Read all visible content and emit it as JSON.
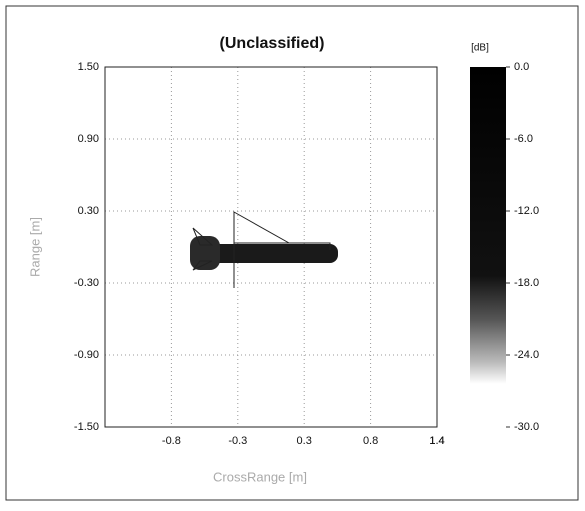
{
  "chart_data": {
    "type": "image",
    "title": "(Unclassified)",
    "x_label": "CrossRange [m]",
    "y_label": "Range [m]",
    "xlim": [
      -1.4,
      1.4
    ],
    "xticks": [
      1.4,
      {
        "value": -0.84,
        "label": "-0.8"
      },
      {
        "value": -0.28,
        "label": "-0.3"
      },
      {
        "value": 0.28,
        "label": "0.3"
      },
      {
        "value": 0.84,
        "label": "0.8"
      },
      1.4
    ],
    "ylim": [
      -1.5,
      1.5
    ],
    "yticks": [
      {
        "value": 1.5,
        "label": "1.50"
      },
      {
        "value": 0.9,
        "label": "0.90"
      },
      {
        "value": 0.3,
        "label": "0.30"
      },
      {
        "value": -0.3,
        "label": "-0.30"
      },
      {
        "value": -0.9,
        "label": "-0.90"
      },
      {
        "value": -1.5,
        "label": "-1.50"
      }
    ],
    "grid": true,
    "colorbar": {
      "label": "[dB]",
      "lim": [
        -30,
        0
      ],
      "ticks": [
        {
          "value": 0,
          "label": "0.0"
        },
        {
          "value": -6,
          "label": "-6.0"
        },
        {
          "value": -12,
          "label": "-12.0"
        },
        {
          "value": -18,
          "label": "-18.0"
        },
        {
          "value": -24,
          "label": "-24.0"
        },
        {
          "value": -30,
          "label": "-30.0"
        }
      ]
    }
  }
}
